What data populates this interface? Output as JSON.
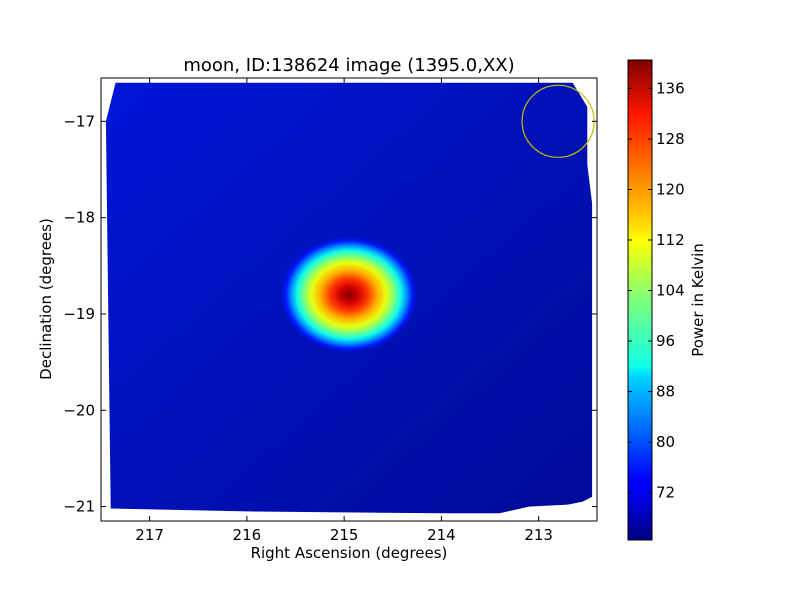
{
  "chart_data": {
    "type": "heatmap",
    "title": "moon, ID:138624 image (1395.0,XX)",
    "xlabel": "Right Ascension (degrees)",
    "ylabel": "Declination (degrees)",
    "xlim": [
      217.5,
      212.4
    ],
    "ylim": [
      -21.15,
      -16.55
    ],
    "x_axis_reversed": true,
    "xticks": [
      217,
      216,
      215,
      214,
      213
    ],
    "xtick_labels": [
      "217",
      "216",
      "215",
      "214",
      "213"
    ],
    "yticks": [
      -17,
      -18,
      -19,
      -20,
      -21
    ],
    "ytick_labels": [
      "−17",
      "−18",
      "−19",
      "−20",
      "−21"
    ],
    "colormap": "jet",
    "colorbar": {
      "label": "Power in Kelvin",
      "range": [
        64.5,
        140.5
      ],
      "ticks": [
        72,
        80,
        88,
        96,
        104,
        112,
        120,
        128,
        136
      ],
      "tick_labels": [
        "72",
        "80",
        "88",
        "96",
        "104",
        "112",
        "120",
        "128",
        "136"
      ]
    },
    "background_level": 68,
    "source": {
      "ra_center": 214.95,
      "dec_center": -18.8,
      "peak_value": 140,
      "extent_ra_deg": 1.4,
      "extent_dec_deg": 1.2
    },
    "beam_circle": {
      "ra": 212.8,
      "dec": -17.0,
      "color": "#bfbf00"
    },
    "map_footprint_radec": [
      [
        217.35,
        -16.6
      ],
      [
        212.65,
        -16.6
      ],
      [
        212.5,
        -16.85
      ],
      [
        212.5,
        -17.45
      ],
      [
        212.45,
        -17.85
      ],
      [
        212.45,
        -20.9
      ],
      [
        212.55,
        -20.95
      ],
      [
        212.7,
        -20.98
      ],
      [
        213.1,
        -21.0
      ],
      [
        213.4,
        -21.07
      ],
      [
        214.0,
        -21.07
      ],
      [
        216.0,
        -21.05
      ],
      [
        217.4,
        -21.02
      ],
      [
        217.45,
        -17.0
      ],
      [
        217.4,
        -16.8
      ]
    ],
    "grid": false
  }
}
